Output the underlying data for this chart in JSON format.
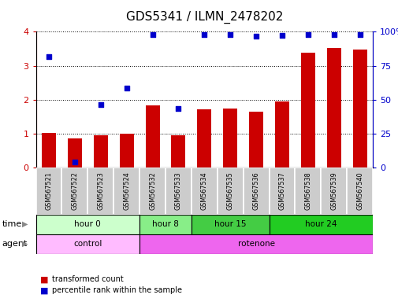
{
  "title": "GDS5341 / ILMN_2478202",
  "samples": [
    "GSM567521",
    "GSM567522",
    "GSM567523",
    "GSM567524",
    "GSM567532",
    "GSM567533",
    "GSM567534",
    "GSM567535",
    "GSM567536",
    "GSM567537",
    "GSM567538",
    "GSM567539",
    "GSM567540"
  ],
  "bar_values": [
    1.02,
    0.87,
    0.95,
    1.0,
    1.82,
    0.95,
    1.72,
    1.73,
    1.65,
    1.95,
    3.38,
    3.52,
    3.48
  ],
  "scatter_values": [
    3.27,
    0.17,
    1.85,
    2.35,
    3.92,
    1.73,
    3.92,
    3.92,
    3.87,
    3.9,
    3.92,
    3.92,
    3.92
  ],
  "ylim": [
    0,
    4
  ],
  "y2lim": [
    0,
    100
  ],
  "yticks": [
    0,
    1,
    2,
    3,
    4
  ],
  "y2ticks": [
    0,
    25,
    50,
    75,
    100
  ],
  "bar_color": "#cc0000",
  "scatter_color": "#0000cc",
  "time_groups": [
    {
      "label": "hour 0",
      "start": 0,
      "end": 4,
      "color": "#ccffcc"
    },
    {
      "label": "hour 8",
      "start": 4,
      "end": 6,
      "color": "#88ee88"
    },
    {
      "label": "hour 15",
      "start": 6,
      "end": 9,
      "color": "#44cc44"
    },
    {
      "label": "hour 24",
      "start": 9,
      "end": 13,
      "color": "#22cc22"
    }
  ],
  "agent_groups": [
    {
      "label": "control",
      "start": 0,
      "end": 4,
      "color": "#ffbbff"
    },
    {
      "label": "rotenone",
      "start": 4,
      "end": 13,
      "color": "#ee66ee"
    }
  ],
  "time_label": "time",
  "agent_label": "agent",
  "legend_bar": "transformed count",
  "legend_scatter": "percentile rank within the sample",
  "tick_label_color": "#cc0000",
  "tick2_label_color": "#0000cc",
  "bg_color": "#ffffff",
  "sample_bg_color": "#cccccc",
  "title_fontsize": 11,
  "axis_fontsize": 8,
  "bar_width": 0.55
}
